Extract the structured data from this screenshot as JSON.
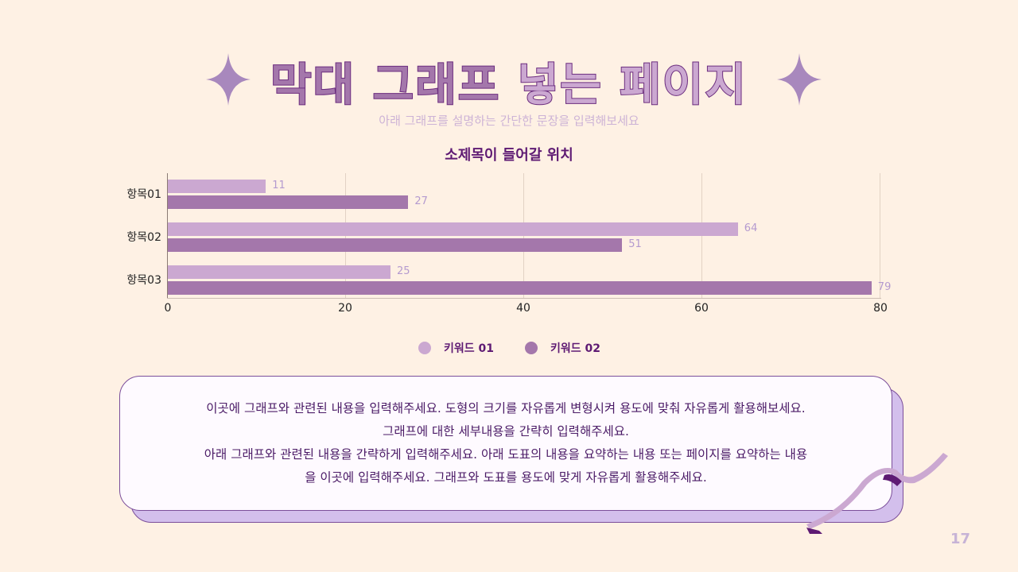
{
  "title": {
    "part1": "막대 그래프",
    "part2": "넣는 페이지"
  },
  "subtitle": "아래 그래프를 설명하는 간단한 문장을 입력해보세요",
  "chart_title": "소제목이 들어갈 위치",
  "icons": {
    "left_sparkle": "sparkle-icon",
    "right_sparkle": "sparkle-icon",
    "ribbon": "ribbon-decoration"
  },
  "colors": {
    "background": "#FEF1E4",
    "series1": "#CBA8D1",
    "series2": "#A477AB",
    "accent_dark": "#5E1A73",
    "label": "#B49ACF"
  },
  "chart_data": {
    "type": "bar",
    "orientation": "horizontal",
    "title": "소제목이 들어갈 위치",
    "categories": [
      "항목01",
      "항목02",
      "항목03"
    ],
    "series": [
      {
        "name": "키워드 01",
        "values": [
          11,
          64,
          25
        ],
        "color": "#CBA8D1"
      },
      {
        "name": "키워드 02",
        "values": [
          27,
          51,
          79
        ],
        "color": "#A477AB"
      }
    ],
    "xlabel": "",
    "ylabel": "",
    "xlim": [
      0,
      80
    ],
    "xticks": [
      "0",
      "20",
      "40",
      "60",
      "80"
    ],
    "grid": "vertical",
    "legend_position": "bottom"
  },
  "legend": [
    {
      "label": "키워드 01"
    },
    {
      "label": "키워드 02"
    }
  ],
  "card": {
    "lines": [
      "이곳에 그래프와 관련된 내용을 입력해주세요. 도형의 크기를 자유롭게 변형시켜 용도에 맞춰 자유롭게 활용해보세요.",
      "그래프에 대한 세부내용을 간략히 입력해주세요.",
      "아래 그래프와 관련된 내용을 간략하게 입력해주세요. 아래 도표의 내용을 요약하는 내용 또는 페이지를 요약하는 내용",
      "을 이곳에 입력해주세요. 그래프와 도표를 용도에 맞게 자유롭게 활용해주세요."
    ]
  },
  "page_number": "17"
}
